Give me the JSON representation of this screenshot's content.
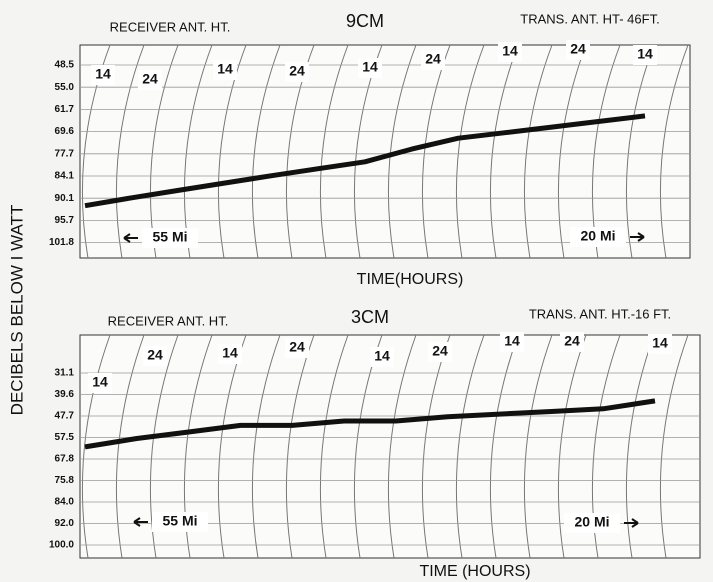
{
  "chart_data": [
    {
      "type": "line",
      "title": "9CM",
      "receiver_label": "RECEIVER ANT. HT.",
      "transmitter_label": "TRANS. ANT. HT- 46FT.",
      "xlabel": "TIME(HOURS)",
      "ylabel": "DECIBELS BELOW I WATT",
      "heights": [
        "14",
        "24",
        "14",
        "24",
        "14",
        "24",
        "14",
        "24",
        "14"
      ],
      "distance_labels": [
        "55 Mi",
        "20 Mi"
      ],
      "ylim": [
        48.5,
        101.8
      ],
      "yticks": [
        48.5,
        {
          "value": 55,
          "label": "55.0"
        },
        61.7,
        69.6,
        77.7,
        84.1,
        90.1,
        95.7,
        101.8
      ],
      "grid": true,
      "series": [
        {
          "color": "#111111",
          "values": [
            92,
            90,
            88,
            86,
            84,
            82,
            80,
            76,
            72,
            70,
            68,
            66,
            64
          ]
        }
      ]
    },
    {
      "type": "line",
      "title": "3CM",
      "receiver_label": "RECEIVER ANT. HT.",
      "transmitter_label": "TRANS. ANT. HT.-16 FT.",
      "xlabel": "TIME (HOURS)",
      "heights": [
        "14",
        "24",
        "14",
        "24",
        "14",
        "24",
        "14",
        "24",
        "14"
      ],
      "distance_labels": [
        "55 Mi",
        "20 Mi"
      ],
      "ylim": [
        31.1,
        100
      ],
      "yticks": [
        31.1,
        39.6,
        47.7,
        57.5,
        67.8,
        75.8,
        {
          "value": 84,
          "label": "84.0"
        },
        {
          "value": 92,
          "label": "92.0"
        },
        {
          "value": 100,
          "label": "100.0"
        }
      ],
      "grid": true,
      "series": [
        {
          "color": "#111111",
          "values": [
            62,
            58,
            55,
            52,
            52,
            50,
            50,
            48,
            47,
            46,
            45,
            42
          ]
        }
      ]
    }
  ]
}
